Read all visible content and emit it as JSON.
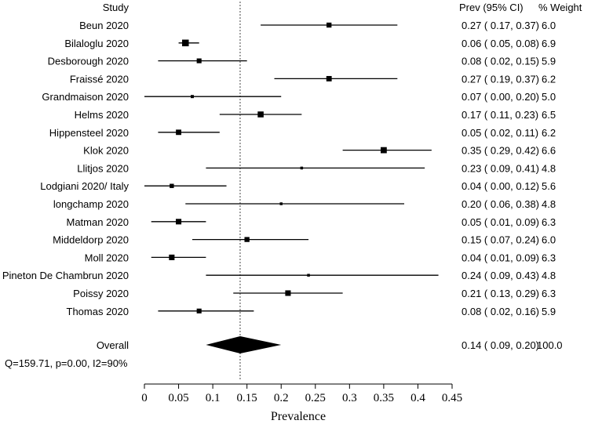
{
  "chart_data": {
    "type": "forest",
    "headers": {
      "study": "Study",
      "ci": "Prev (95% CI)",
      "weight": "% Weight"
    },
    "xlabel": "Prevalence",
    "xlim": [
      0,
      0.45
    ],
    "xticks": [
      "0",
      "0.05",
      "0.1",
      "0.15",
      "0.2",
      "0.25",
      "0.3",
      "0.35",
      "0.4",
      "0.45"
    ],
    "reference_line": 0.14,
    "studies": [
      {
        "name": "Beun 2020",
        "est": 0.27,
        "lo": 0.17,
        "hi": 0.37,
        "ci_text": "0.27  (  0.17,  0.37)",
        "weight": "6.0"
      },
      {
        "name": "Bilaloglu 2020",
        "est": 0.06,
        "lo": 0.05,
        "hi": 0.08,
        "ci_text": "0.06  (  0.05,  0.08)",
        "weight": "6.9"
      },
      {
        "name": "Desborough 2020",
        "est": 0.08,
        "lo": 0.02,
        "hi": 0.15,
        "ci_text": "0.08  (  0.02,  0.15)",
        "weight": "5.9"
      },
      {
        "name": "Fraissé 2020",
        "est": 0.27,
        "lo": 0.19,
        "hi": 0.37,
        "ci_text": "0.27  (  0.19,  0.37)",
        "weight": "6.2"
      },
      {
        "name": "Grandmaison 2020",
        "est": 0.07,
        "lo": 0.0,
        "hi": 0.2,
        "ci_text": "0.07  (  0.00,  0.20)",
        "weight": "5.0"
      },
      {
        "name": "Helms 2020",
        "est": 0.17,
        "lo": 0.11,
        "hi": 0.23,
        "ci_text": "0.17  (  0.11,  0.23)",
        "weight": "6.5"
      },
      {
        "name": "Hippensteel 2020",
        "est": 0.05,
        "lo": 0.02,
        "hi": 0.11,
        "ci_text": "0.05  (  0.02,  0.11)",
        "weight": "6.2"
      },
      {
        "name": "Klok 2020",
        "est": 0.35,
        "lo": 0.29,
        "hi": 0.42,
        "ci_text": "0.35  (  0.29,  0.42)",
        "weight": "6.6"
      },
      {
        "name": "Llitjos 2020",
        "est": 0.23,
        "lo": 0.09,
        "hi": 0.41,
        "ci_text": "0.23  (  0.09,  0.41)",
        "weight": "4.8"
      },
      {
        "name": "Lodgiani 2020/ Italy",
        "est": 0.04,
        "lo": 0.0,
        "hi": 0.12,
        "ci_text": "0.04  (  0.00,  0.12)",
        "weight": "5.6"
      },
      {
        "name": "longchamp 2020",
        "est": 0.2,
        "lo": 0.06,
        "hi": 0.38,
        "ci_text": "0.20  (  0.06,  0.38)",
        "weight": "4.8"
      },
      {
        "name": "Matman 2020",
        "est": 0.05,
        "lo": 0.01,
        "hi": 0.09,
        "ci_text": "0.05  (  0.01,  0.09)",
        "weight": "6.3"
      },
      {
        "name": "Middeldorp 2020",
        "est": 0.15,
        "lo": 0.07,
        "hi": 0.24,
        "ci_text": "0.15  (  0.07,  0.24)",
        "weight": "6.0"
      },
      {
        "name": "Moll 2020",
        "est": 0.04,
        "lo": 0.01,
        "hi": 0.09,
        "ci_text": "0.04  (  0.01,  0.09)",
        "weight": "6.3"
      },
      {
        "name": "Pineton De Chambrun 2020",
        "est": 0.24,
        "lo": 0.09,
        "hi": 0.43,
        "ci_text": "0.24  (  0.09,  0.43)",
        "weight": "4.8"
      },
      {
        "name": "Poissy 2020",
        "est": 0.21,
        "lo": 0.13,
        "hi": 0.29,
        "ci_text": "0.21  (  0.13,  0.29)",
        "weight": "6.3"
      },
      {
        "name": "Thomas 2020",
        "est": 0.08,
        "lo": 0.02,
        "hi": 0.16,
        "ci_text": "0.08  (  0.02,  0.16)",
        "weight": "5.9"
      }
    ],
    "overall": {
      "name": "Overall",
      "est": 0.14,
      "lo": 0.09,
      "hi": 0.2,
      "ci_text": "0.14  (  0.09,  0.20)",
      "weight": "100.0",
      "heterogeneity": "Q=159.71, p=0.00, I2=90%"
    }
  }
}
